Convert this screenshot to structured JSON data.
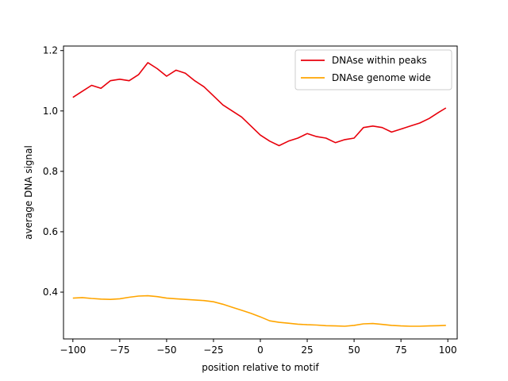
{
  "chart_data": {
    "type": "line",
    "title": "",
    "xlabel": "position relative to motif",
    "ylabel": "average DNA signal",
    "xlim": [
      -105,
      105
    ],
    "ylim": [
      0.245,
      1.215
    ],
    "x_ticks": [
      -100,
      -75,
      -50,
      -25,
      0,
      25,
      50,
      75,
      100
    ],
    "x_tick_labels": [
      "−100",
      "−75",
      "−50",
      "−25",
      "0",
      "25",
      "50",
      "75",
      "100"
    ],
    "y_ticks": [
      0.4,
      0.6,
      0.8,
      1.0,
      1.2
    ],
    "y_tick_labels": [
      "0.4",
      "0.6",
      "0.8",
      "1.0",
      "1.2"
    ],
    "grid": false,
    "legend_position": "top-right",
    "x": [
      -100,
      -95,
      -90,
      -85,
      -80,
      -75,
      -70,
      -65,
      -60,
      -55,
      -50,
      -45,
      -40,
      -35,
      -30,
      -25,
      -20,
      -15,
      -10,
      -5,
      0,
      5,
      10,
      15,
      20,
      25,
      30,
      35,
      40,
      45,
      50,
      55,
      60,
      65,
      70,
      75,
      80,
      85,
      90,
      95,
      99
    ],
    "series": [
      {
        "name": "DNAse within peaks",
        "color": "#e8000b",
        "values": [
          1.045,
          1.065,
          1.085,
          1.075,
          1.1,
          1.105,
          1.1,
          1.12,
          1.16,
          1.14,
          1.115,
          1.135,
          1.125,
          1.1,
          1.08,
          1.05,
          1.02,
          1.0,
          0.98,
          0.95,
          0.92,
          0.9,
          0.885,
          0.9,
          0.91,
          0.925,
          0.915,
          0.91,
          0.895,
          0.905,
          0.91,
          0.945,
          0.95,
          0.945,
          0.93,
          0.94,
          0.95,
          0.96,
          0.975,
          0.995,
          1.01
        ]
      },
      {
        "name": "DNAse genome wide",
        "color": "#ffa500",
        "values": [
          0.38,
          0.382,
          0.379,
          0.377,
          0.376,
          0.378,
          0.383,
          0.387,
          0.388,
          0.385,
          0.38,
          0.378,
          0.376,
          0.374,
          0.372,
          0.368,
          0.36,
          0.35,
          0.34,
          0.33,
          0.318,
          0.305,
          0.3,
          0.297,
          0.294,
          0.292,
          0.291,
          0.289,
          0.288,
          0.287,
          0.29,
          0.295,
          0.296,
          0.293,
          0.29,
          0.288,
          0.287,
          0.287,
          0.288,
          0.289,
          0.29
        ]
      }
    ]
  }
}
